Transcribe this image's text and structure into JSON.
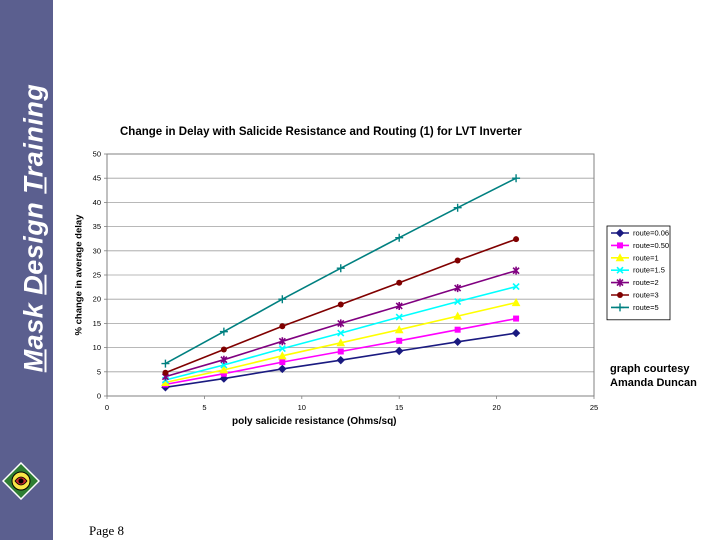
{
  "sidebar": {
    "title": "Mask Design Training"
  },
  "footer": {
    "page_label": "Page 8"
  },
  "courtesy": {
    "line1": "graph courtesy",
    "line2": "Amanda Duncan"
  },
  "chart_data": {
    "type": "line",
    "title": "Change in Delay with Salicide Resistance and Routing (1) for LVT Inverter",
    "xlabel": "poly salicide resistance (Ohms/sq)",
    "ylabel": "% change in average delay",
    "xlim": [
      0,
      25
    ],
    "ylim": [
      0,
      50
    ],
    "xticks": [
      0,
      5,
      10,
      15,
      20,
      25
    ],
    "yticks": [
      0,
      5,
      10,
      15,
      20,
      25,
      30,
      35,
      40,
      45,
      50
    ],
    "grid": true,
    "legend_position": "right",
    "x": [
      3,
      6,
      9,
      12,
      15,
      18,
      21
    ],
    "series": [
      {
        "name": "route=0.06",
        "color": "#1a1a80",
        "marker": "diamond",
        "values": [
          1.8,
          3.6,
          5.6,
          7.4,
          9.3,
          11.2,
          13.0
        ]
      },
      {
        "name": "route=0.50",
        "color": "#ff00ff",
        "marker": "square",
        "values": [
          2.4,
          4.6,
          7.0,
          9.2,
          11.4,
          13.7,
          16.0
        ]
      },
      {
        "name": "route=1",
        "color": "#ffff00",
        "marker": "triangle",
        "values": [
          2.8,
          5.4,
          8.3,
          11.0,
          13.7,
          16.5,
          19.3
        ]
      },
      {
        "name": "route=1.5",
        "color": "#00ffff",
        "marker": "x",
        "values": [
          3.3,
          6.4,
          9.8,
          13.0,
          16.3,
          19.5,
          22.6
        ]
      },
      {
        "name": "route=2",
        "color": "#800080",
        "marker": "star",
        "values": [
          4.0,
          7.5,
          11.3,
          15.0,
          18.6,
          22.3,
          25.9
        ]
      },
      {
        "name": "route=3",
        "color": "#800000",
        "marker": "circle",
        "values": [
          4.8,
          9.6,
          14.4,
          18.9,
          23.4,
          28.0,
          32.4
        ]
      },
      {
        "name": "route=5",
        "color": "#008080",
        "marker": "plus",
        "values": [
          6.7,
          13.3,
          20.0,
          26.4,
          32.7,
          38.9,
          45.0
        ]
      }
    ]
  }
}
